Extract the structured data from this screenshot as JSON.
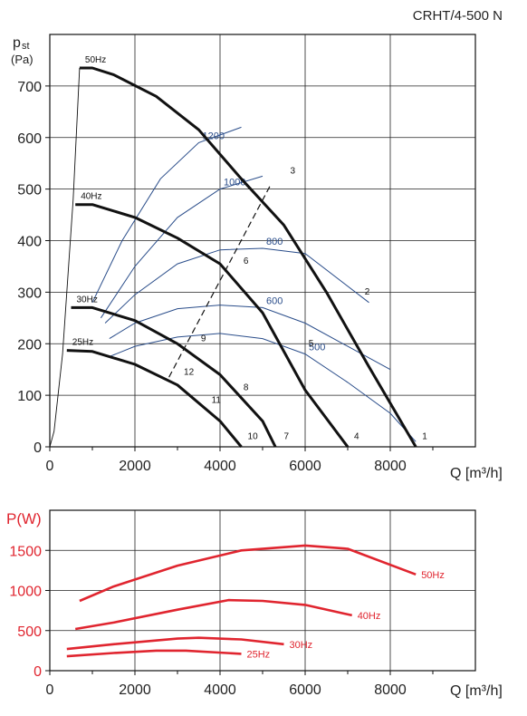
{
  "chart_data": [
    {
      "type": "line",
      "title": "CRHT/4-500 N",
      "ylabel_main": "p",
      "ylabel_sub": "st",
      "ylabel_unit": "(Pa)",
      "xlabel": "Q [m³/h]",
      "xlim": [
        0,
        10000
      ],
      "ylim": [
        0,
        800
      ],
      "xticks": [
        "0",
        "2000",
        "4000",
        "6000",
        "8000"
      ],
      "xtick_values": [
        0,
        2000,
        4000,
        6000,
        8000
      ],
      "yticks": [
        "0",
        "100",
        "200",
        "300",
        "400",
        "500",
        "600",
        "700"
      ],
      "ytick_values": [
        0,
        100,
        200,
        300,
        400,
        500,
        600,
        700
      ],
      "grid": true,
      "series": [
        {
          "name": "50Hz",
          "color": "#111111",
          "points": [
            [
              700,
              735
            ],
            [
              1000,
              735
            ],
            [
              1500,
              722
            ],
            [
              2500,
              680
            ],
            [
              3500,
              615
            ],
            [
              4500,
              520
            ],
            [
              5500,
              430
            ],
            [
              6500,
              300
            ],
            [
              7500,
              155
            ],
            [
              8600,
              0
            ]
          ]
        },
        {
          "name": "40Hz",
          "color": "#111111",
          "points": [
            [
              600,
              470
            ],
            [
              1000,
              470
            ],
            [
              2000,
              445
            ],
            [
              3000,
              405
            ],
            [
              4000,
              355
            ],
            [
              5000,
              260
            ],
            [
              6000,
              110
            ],
            [
              7000,
              0
            ]
          ]
        },
        {
          "name": "30Hz",
          "color": "#111111",
          "points": [
            [
              500,
              270
            ],
            [
              1000,
              270
            ],
            [
              2000,
              245
            ],
            [
              3000,
              200
            ],
            [
              4000,
              140
            ],
            [
              5000,
              50
            ],
            [
              5300,
              0
            ]
          ]
        },
        {
          "name": "25Hz",
          "color": "#111111",
          "points": [
            [
              400,
              187
            ],
            [
              1000,
              185
            ],
            [
              2000,
              160
            ],
            [
              3000,
              120
            ],
            [
              4000,
              50
            ],
            [
              4500,
              0
            ]
          ]
        }
      ],
      "system_curve": {
        "color": "#111111",
        "points": [
          [
            0,
            0
          ],
          [
            100,
            30
          ],
          [
            300,
            180
          ],
          [
            550,
            480
          ],
          [
            700,
            735
          ]
        ]
      },
      "duty_line": {
        "color": "#111111",
        "points": [
          [
            2800,
            135
          ],
          [
            5200,
            510
          ]
        ]
      },
      "iso_curves": [
        {
          "name": "1200",
          "color": "#2a4d8a",
          "points": [
            [
              1000,
              280
            ],
            [
              1700,
              400
            ],
            [
              2600,
              520
            ],
            [
              3500,
              590
            ],
            [
              4500,
              620
            ]
          ]
        },
        {
          "name": "1000",
          "color": "#2a4d8a",
          "points": [
            [
              1200,
              250
            ],
            [
              2000,
              350
            ],
            [
              3000,
              445
            ],
            [
              4000,
              500
            ],
            [
              5000,
              525
            ]
          ]
        },
        {
          "name": "800",
          "color": "#2a4d8a",
          "points": [
            [
              1300,
              240
            ],
            [
              2000,
              295
            ],
            [
              3000,
              355
            ],
            [
              4000,
              382
            ],
            [
              5000,
              385
            ],
            [
              6000,
              375
            ],
            [
              7500,
              280
            ]
          ]
        },
        {
          "name": "600",
          "color": "#2a4d8a",
          "points": [
            [
              1400,
              210
            ],
            [
              2000,
              240
            ],
            [
              3000,
              268
            ],
            [
              4000,
              275
            ],
            [
              5000,
              270
            ],
            [
              6000,
              240
            ],
            [
              7000,
              195
            ],
            [
              8000,
              150
            ]
          ]
        },
        {
          "name": "500",
          "color": "#2a4d8a",
          "points": [
            [
              1400,
              175
            ],
            [
              2000,
              195
            ],
            [
              3000,
              213
            ],
            [
              4000,
              220
            ],
            [
              5000,
              210
            ],
            [
              6000,
              180
            ],
            [
              7000,
              125
            ],
            [
              8000,
              65
            ],
            [
              8600,
              10
            ]
          ]
        }
      ],
      "point_labels": [
        {
          "text": "1",
          "x": 8750,
          "y": 15
        },
        {
          "text": "2",
          "x": 7400,
          "y": 295
        },
        {
          "text": "3",
          "x": 5650,
          "y": 530
        },
        {
          "text": "4",
          "x": 7150,
          "y": 15
        },
        {
          "text": "5",
          "x": 6080,
          "y": 195
        },
        {
          "text": "6",
          "x": 4550,
          "y": 355
        },
        {
          "text": "7",
          "x": 5500,
          "y": 15
        },
        {
          "text": "8",
          "x": 4550,
          "y": 110
        },
        {
          "text": "9",
          "x": 3550,
          "y": 205
        },
        {
          "text": "10",
          "x": 4650,
          "y": 15
        },
        {
          "text": "11",
          "x": 3800,
          "y": 85
        },
        {
          "text": "12",
          "x": 3150,
          "y": 140
        }
      ]
    },
    {
      "type": "line",
      "ylabel": "P(W)",
      "xlabel": "Q [m³/h]",
      "xlim": [
        0,
        10000
      ],
      "ylim": [
        0,
        2000
      ],
      "xticks": [
        "0",
        "2000",
        "4000",
        "6000",
        "8000"
      ],
      "xtick_values": [
        0,
        2000,
        4000,
        6000,
        8000
      ],
      "yticks": [
        "0",
        "500",
        "1000",
        "1500"
      ],
      "ytick_values": [
        0,
        500,
        1000,
        1500
      ],
      "grid": true,
      "series": [
        {
          "name": "50Hz",
          "color": "#e0252f",
          "points": [
            [
              700,
              870
            ],
            [
              1500,
              1050
            ],
            [
              3000,
              1310
            ],
            [
              4500,
              1500
            ],
            [
              6000,
              1560
            ],
            [
              7000,
              1520
            ],
            [
              8600,
              1200
            ]
          ]
        },
        {
          "name": "40Hz",
          "color": "#e0252f",
          "points": [
            [
              600,
              520
            ],
            [
              1500,
              600
            ],
            [
              3000,
              760
            ],
            [
              4200,
              880
            ],
            [
              5000,
              870
            ],
            [
              6000,
              820
            ],
            [
              7100,
              690
            ]
          ]
        },
        {
          "name": "30Hz",
          "color": "#e0252f",
          "points": [
            [
              400,
              270
            ],
            [
              1500,
              330
            ],
            [
              3000,
              400
            ],
            [
              3500,
              410
            ],
            [
              4500,
              390
            ],
            [
              5500,
              330
            ]
          ]
        },
        {
          "name": "25Hz",
          "color": "#e0252f",
          "points": [
            [
              400,
              180
            ],
            [
              1500,
              220
            ],
            [
              2500,
              250
            ],
            [
              3200,
              250
            ],
            [
              4500,
              210
            ]
          ]
        }
      ]
    }
  ]
}
